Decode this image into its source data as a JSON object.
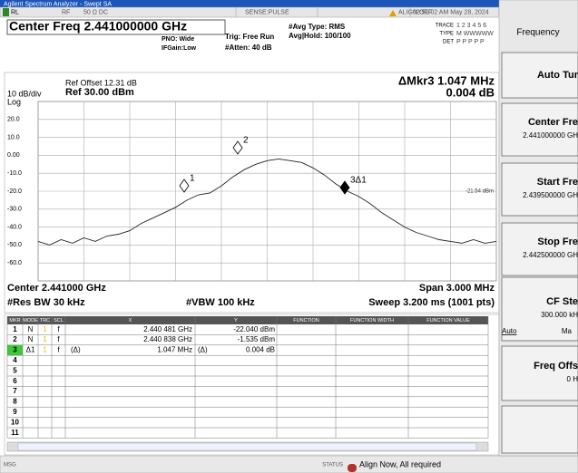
{
  "title_bar": "Agilent Spectrum Analyzer - Swept SA",
  "status_row": {
    "rl": "RL",
    "rf": "RF",
    "impedance": "50 Ω  DC",
    "sense": "SENSE:PULSE",
    "align": "ALIGN OFF",
    "time": "02:51:02 AM May 28, 2024"
  },
  "settings": {
    "center_freq": "Center Freq 2.441000000 GHz",
    "pno": "PNO: Wide",
    "ifgain": "IFGain:Low",
    "trig": "Trig: Free Run",
    "atten": "#Atten: 40 dB",
    "avg_type": "#Avg Type: RMS",
    "avg_hold": "Avg|Hold: 100/100",
    "trace_label": "TRACE",
    "trace_nums": "1 2 3 4 5 6",
    "type_label": "TYPE",
    "type_value": "M WWWWW",
    "det_label": "DET",
    "det_value": "P P P P P"
  },
  "plot": {
    "ref_offset": "Ref Offset 12.31 dB",
    "scale": "10 dB/div",
    "ref_level": "Ref 30.00 dBm",
    "log": "Log",
    "delta_marker": "ΔMkr3 1.047 MHz",
    "delta_value": "0.004 dB",
    "display_line": "-21.54 dBm",
    "markers": [
      "1",
      "2",
      "3Δ1"
    ],
    "ylim": [
      -70,
      30
    ],
    "yticks": [
      {
        "value": 20,
        "label": "20.0"
      },
      {
        "value": 10,
        "label": "10.0"
      },
      {
        "value": 0,
        "label": "0.00"
      },
      {
        "value": -10,
        "label": "-10.0"
      },
      {
        "value": -20,
        "label": "-20.0"
      },
      {
        "value": -30,
        "label": "-30.0"
      },
      {
        "value": -40,
        "label": "-40.0"
      },
      {
        "value": -50,
        "label": "-50.0"
      },
      {
        "value": -60,
        "label": "-60.0"
      }
    ],
    "trace": [
      -48,
      -50,
      -47,
      -49,
      -46,
      -48,
      -45,
      -44,
      -42,
      -38,
      -35,
      -32,
      -29,
      -25,
      -22,
      -21,
      -17,
      -12,
      -8,
      -5,
      -3,
      -2,
      -3,
      -4,
      -7,
      -11,
      -16,
      -20,
      -23,
      -27,
      -32,
      -36,
      -40,
      -43,
      -45,
      -47,
      -48,
      -49,
      -47,
      -49,
      -48
    ],
    "center": "Center 2.441000 GHz",
    "span": "Span 3.000 MHz",
    "rbw": "#Res BW 30 kHz",
    "vbw": "#VBW 100 kHz",
    "sweep": "Sweep  3.200 ms (1001 pts)"
  },
  "marker_table": {
    "headers": [
      "MKR",
      "MODE",
      "TRC",
      "SCL",
      "X",
      "Y",
      "FUNCTION",
      "FUNCTION WIDTH",
      "FUNCTION VALUE"
    ],
    "rows": [
      {
        "mkr": "1",
        "mode": "N",
        "trc": "1",
        "scl": "f",
        "x": "2.440 481 GHz",
        "y": "-22.040 dBm"
      },
      {
        "mkr": "2",
        "mode": "N",
        "trc": "1",
        "scl": "f",
        "x": "2.440 838 GHz",
        "y": "-1.535 dBm"
      },
      {
        "mkr": "3",
        "mode": "Δ1",
        "trc": "1",
        "scl": "f",
        "x_fn": "(Δ)",
        "x": "1.047 MHz",
        "y_fn": "(Δ)",
        "y": "0.004 dB"
      },
      {
        "mkr": "4"
      },
      {
        "mkr": "5"
      },
      {
        "mkr": "6"
      },
      {
        "mkr": "7"
      },
      {
        "mkr": "8"
      },
      {
        "mkr": "9"
      },
      {
        "mkr": "10"
      },
      {
        "mkr": "11"
      }
    ]
  },
  "message_bar": {
    "msg": "MSG",
    "status": "STATUS",
    "text": "Align Now, All required"
  },
  "softkeys": {
    "menu": "Frequency",
    "keys": [
      {
        "label": "Auto Tur"
      },
      {
        "label": "Center Fre",
        "value": "2.441000000 GH"
      },
      {
        "label": "Start Fre",
        "value": "2.439500000 GH"
      },
      {
        "label": "Stop Fre",
        "value": "2.442500000 GH"
      },
      {
        "label": "CF Ste",
        "value": "300.000 kH",
        "option_a": "Auto",
        "option_b": "Ma"
      },
      {
        "label": "Freq Offs",
        "value": "0 H"
      }
    ]
  }
}
